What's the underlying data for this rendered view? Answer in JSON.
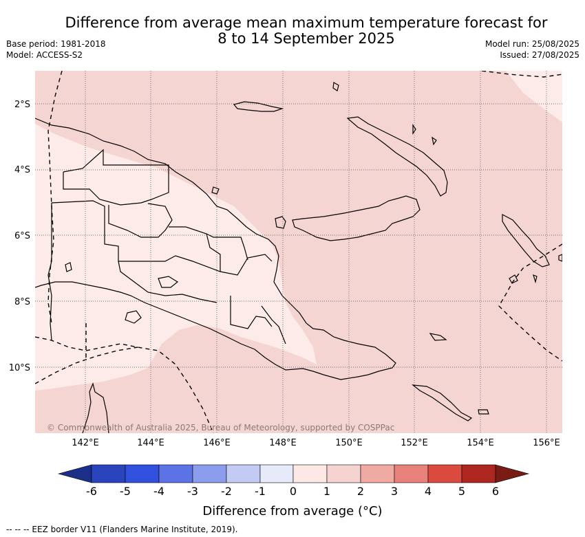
{
  "header": {
    "title_line1": "Difference from average mean maximum temperature forecast for",
    "title_line2": "8 to 14 September 2025",
    "base_period": "Base period: 1981-2018",
    "model": "Model: ACCESS-S2",
    "model_run": "Model run: 25/08/2025",
    "issued": "Issued: 27/08/2025"
  },
  "map": {
    "lon_range": [
      140.6,
      156.5
    ],
    "lat_range": [
      -12.0,
      -1.0
    ],
    "lat_ticks": [
      "2°S",
      "4°S",
      "6°S",
      "8°S",
      "10°S"
    ],
    "lon_ticks": [
      "142°E",
      "144°E",
      "146°E",
      "148°E",
      "150°E",
      "152°E",
      "154°E",
      "156°E"
    ],
    "grid": true,
    "copyright": "© Commonwealth of Australia 2025, Bureau of Meteorology, supported by COSPPac"
  },
  "legend": {
    "tick_labels": [
      "-6",
      "-5",
      "-4",
      "-3",
      "-2",
      "-1",
      "0",
      "1",
      "2",
      "3",
      "4",
      "5",
      "6"
    ],
    "label": "Difference from average (°C)",
    "colors": [
      "#1c2f88",
      "#2a44bd",
      "#3150de",
      "#5b73e4",
      "#8c9ded",
      "#c3caf4",
      "#e6eafb",
      "#fce9e6",
      "#f5d3d0",
      "#efaaa4",
      "#e7817a",
      "#db4a3f",
      "#ad261f",
      "#7a1b16"
    ]
  },
  "footer": {
    "eez_note": "--  --  -- EEZ border V11 (Flanders Marine Institute, 2019)."
  },
  "colors": {
    "anomaly_0_1": "#fcebe9",
    "anomaly_1_2": "#f5d5d2"
  }
}
